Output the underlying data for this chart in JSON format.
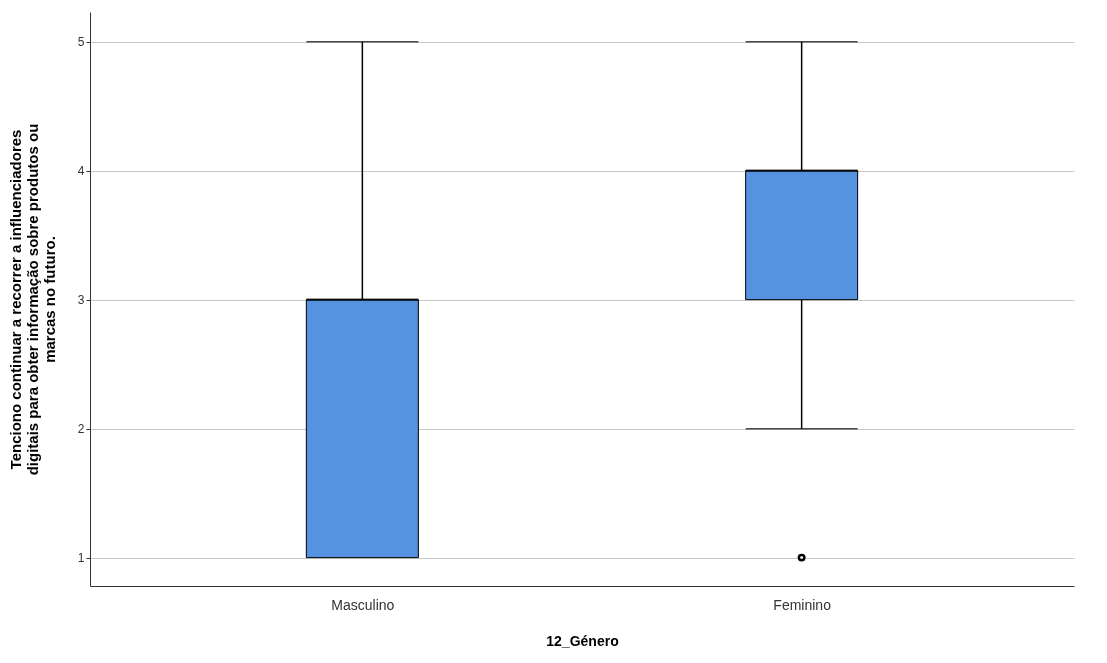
{
  "chart_data": {
    "type": "box",
    "categories": [
      "Masculino",
      "Feminino"
    ],
    "boxes": [
      {
        "low": 1,
        "q1": 1,
        "median": 3,
        "q3": 3,
        "high": 5
      },
      {
        "low": 2,
        "q1": 3,
        "median": 4,
        "q3": 4,
        "high": 5,
        "outliers": [
          1
        ]
      }
    ],
    "color": "#5593e0",
    "xlabel": "12_Género",
    "ylabel": "Tenciono continuar a recorrer a influenciadores digitais para obter informação sobre produtos ou marcas no futuro.",
    "ylim": [
      0.78,
      5.23
    ],
    "yticks": [
      1,
      2,
      3,
      4,
      5
    ],
    "grid": "y"
  }
}
